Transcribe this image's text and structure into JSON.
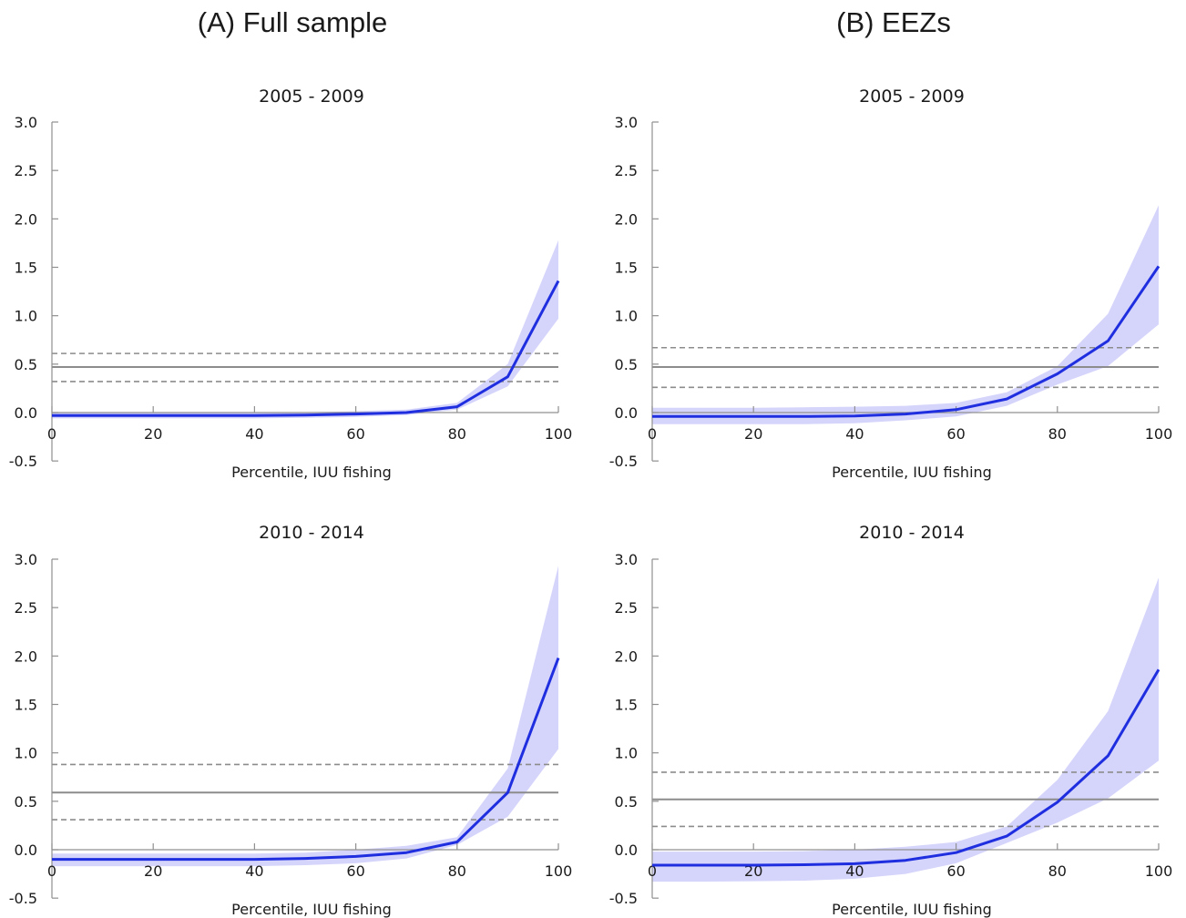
{
  "column_titles": [
    "(A) Full sample",
    "(B) EEZs"
  ],
  "colors": {
    "series_line": "#1f2fe0",
    "confidence_band": "#d5d4fb",
    "reference_line": "#8c8c8c",
    "axis": "#909090"
  },
  "chart_data": [
    {
      "type": "line",
      "column": "(A) Full sample",
      "title": "2005 - 2009",
      "xlabel": "Percentile, IUU fishing",
      "ylabel": "",
      "xlim": [
        0,
        100
      ],
      "ylim": [
        -0.5,
        3.0
      ],
      "x_ticks": [
        "0",
        "20",
        "40",
        "60",
        "80",
        "100"
      ],
      "y_ticks": [
        "3.0",
        "2.5",
        "2.0",
        "1.5",
        "1.0",
        "0.5",
        "0.0",
        "-0.5"
      ],
      "x": [
        0,
        10,
        20,
        30,
        40,
        50,
        60,
        70,
        80,
        90,
        100
      ],
      "values": [
        -0.03,
        -0.03,
        -0.03,
        -0.03,
        -0.03,
        -0.025,
        -0.015,
        0.0,
        0.06,
        0.37,
        1.36
      ],
      "ci_lower": [
        -0.06,
        -0.06,
        -0.06,
        -0.06,
        -0.06,
        -0.055,
        -0.045,
        -0.025,
        0.03,
        0.27,
        0.97
      ],
      "ci_upper": [
        0.0,
        0.0,
        0.0,
        0.0,
        0.0,
        0.005,
        0.015,
        0.03,
        0.1,
        0.5,
        1.78
      ],
      "reference": {
        "value": 0.47,
        "lower": 0.32,
        "upper": 0.61
      },
      "grid": false,
      "legend": "none"
    },
    {
      "type": "line",
      "column": "(B) EEZs",
      "title": "2005 - 2009",
      "xlabel": "Percentile, IUU fishing",
      "ylabel": "",
      "xlim": [
        0,
        100
      ],
      "ylim": [
        -0.5,
        3.0
      ],
      "x_ticks": [
        "0",
        "20",
        "40",
        "60",
        "80",
        "100"
      ],
      "y_ticks": [
        "3.0",
        "2.5",
        "2.0",
        "1.5",
        "1.0",
        "0.5",
        "0.0",
        "-0.5"
      ],
      "x": [
        0,
        10,
        20,
        30,
        40,
        50,
        60,
        70,
        80,
        90,
        100
      ],
      "values": [
        -0.04,
        -0.04,
        -0.04,
        -0.04,
        -0.035,
        -0.015,
        0.03,
        0.14,
        0.4,
        0.74,
        1.51
      ],
      "ci_lower": [
        -0.12,
        -0.12,
        -0.12,
        -0.12,
        -0.11,
        -0.08,
        -0.04,
        0.07,
        0.29,
        0.48,
        0.91
      ],
      "ci_upper": [
        0.05,
        0.05,
        0.05,
        0.055,
        0.06,
        0.07,
        0.1,
        0.21,
        0.48,
        1.02,
        2.14
      ],
      "reference": {
        "value": 0.47,
        "lower": 0.26,
        "upper": 0.67
      },
      "grid": false,
      "legend": "none"
    },
    {
      "type": "line",
      "column": "(A) Full sample",
      "title": "2010 - 2014",
      "xlabel": "Percentile, IUU fishing",
      "ylabel": "",
      "xlim": [
        0,
        100
      ],
      "ylim": [
        -0.5,
        3.0
      ],
      "x_ticks": [
        "0",
        "20",
        "40",
        "60",
        "80",
        "100"
      ],
      "y_ticks": [
        "3.0",
        "2.5",
        "2.0",
        "1.5",
        "1.0",
        "0.5",
        "0.0",
        "-0.5"
      ],
      "x": [
        0,
        10,
        20,
        30,
        40,
        50,
        60,
        70,
        80,
        90,
        100
      ],
      "values": [
        -0.1,
        -0.1,
        -0.1,
        -0.1,
        -0.1,
        -0.09,
        -0.07,
        -0.03,
        0.08,
        0.59,
        1.98
      ],
      "ci_lower": [
        -0.17,
        -0.17,
        -0.17,
        -0.17,
        -0.17,
        -0.16,
        -0.14,
        -0.09,
        0.05,
        0.34,
        1.04
      ],
      "ci_upper": [
        -0.04,
        -0.04,
        -0.04,
        -0.04,
        -0.04,
        -0.03,
        0.0,
        0.04,
        0.13,
        0.84,
        2.93
      ],
      "reference": {
        "value": 0.59,
        "lower": 0.31,
        "upper": 0.88
      },
      "grid": false,
      "legend": "none"
    },
    {
      "type": "line",
      "column": "(B) EEZs",
      "title": "2010 - 2014",
      "xlabel": "Percentile, IUU fishing",
      "ylabel": "",
      "xlim": [
        0,
        100
      ],
      "ylim": [
        -0.5,
        3.0
      ],
      "x_ticks": [
        "0",
        "20",
        "40",
        "60",
        "80",
        "100"
      ],
      "y_ticks": [
        "3.0",
        "2.5",
        "2.0",
        "1.5",
        "1.0",
        "0.5",
        "0.0",
        "-0.5"
      ],
      "x": [
        0,
        10,
        20,
        30,
        40,
        50,
        60,
        70,
        80,
        90,
        100
      ],
      "values": [
        -0.16,
        -0.16,
        -0.16,
        -0.155,
        -0.145,
        -0.11,
        -0.03,
        0.14,
        0.49,
        0.97,
        1.86
      ],
      "ci_lower": [
        -0.33,
        -0.33,
        -0.325,
        -0.32,
        -0.3,
        -0.25,
        -0.14,
        0.07,
        0.28,
        0.53,
        0.92
      ],
      "ci_upper": [
        -0.02,
        -0.02,
        -0.02,
        -0.015,
        0.0,
        0.03,
        0.08,
        0.24,
        0.72,
        1.43,
        2.81
      ],
      "reference": {
        "value": 0.52,
        "lower": 0.24,
        "upper": 0.8
      },
      "grid": false,
      "legend": "none"
    }
  ]
}
